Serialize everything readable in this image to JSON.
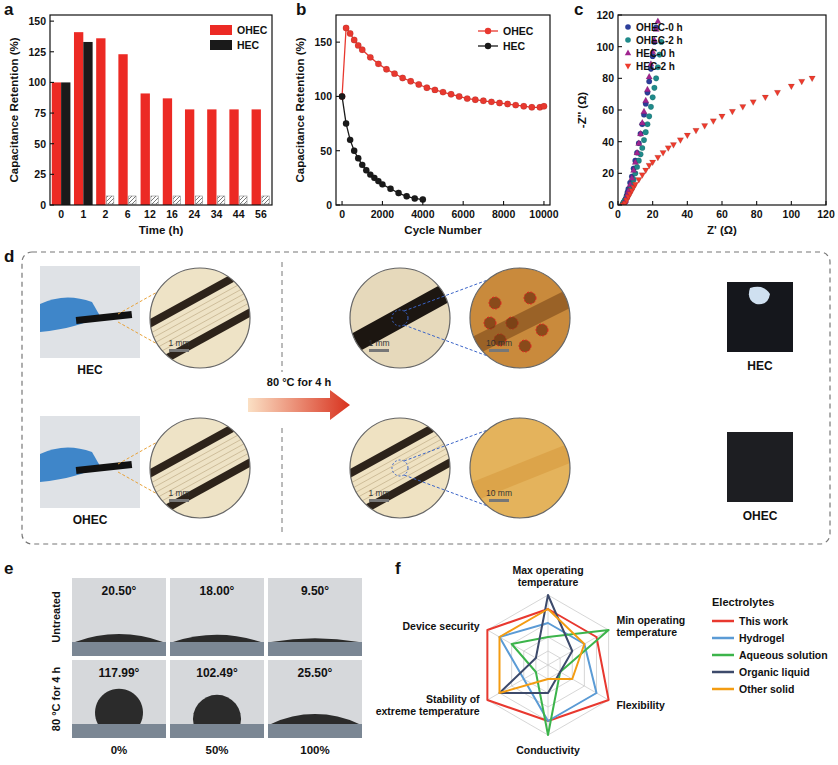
{
  "chart_data": [
    {
      "type": "bar",
      "title": "a",
      "x_label": "Time (h)",
      "y_label": "Capacitance Retention (%)",
      "categories": [
        "0",
        "1",
        "2",
        "6",
        "12",
        "16",
        "24",
        "34",
        "44",
        "56"
      ],
      "series": [
        {
          "name": "OHEC",
          "color": "#ec2a24",
          "values": [
            100,
            141,
            136,
            123,
            91,
            87,
            78,
            78,
            78,
            78
          ]
        },
        {
          "name": "HEC",
          "color": "#1a1a1a",
          "values": [
            100,
            133,
            null,
            null,
            null,
            null,
            null,
            null,
            null,
            null
          ]
        }
      ],
      "ylim": [
        0,
        155
      ],
      "yticks": [
        0,
        25,
        50,
        75,
        100,
        125,
        150
      ],
      "legend": "upper right"
    },
    {
      "type": "line",
      "title": "b",
      "x_label": "Cycle Number",
      "y_label": "Capacitance Retention (%)",
      "series": [
        {
          "name": "OHEC",
          "color": "#e8382f",
          "marker": "circle",
          "line_style": "solid",
          "x": [
            0,
            200,
            400,
            600,
            800,
            1000,
            1400,
            1800,
            2200,
            2600,
            3000,
            3400,
            3800,
            4200,
            4600,
            5000,
            5400,
            5800,
            6200,
            6600,
            7000,
            7400,
            7800,
            8200,
            8600,
            9000,
            9400,
            9800,
            10000
          ],
          "values": [
            100,
            163,
            158,
            152,
            147,
            143,
            136,
            130,
            125,
            121,
            117,
            114,
            111,
            108,
            106,
            104,
            102,
            100,
            98,
            97,
            96,
            95,
            94,
            93,
            92,
            91,
            90,
            90,
            91
          ]
        },
        {
          "name": "HEC",
          "color": "#1a1a1a",
          "marker": "circle",
          "line_style": "solid",
          "x": [
            0,
            200,
            400,
            600,
            800,
            1000,
            1200,
            1400,
            1600,
            1800,
            2000,
            2400,
            2800,
            3200,
            3600,
            4000
          ],
          "values": [
            100,
            75,
            60,
            50,
            43,
            37,
            32,
            28,
            25,
            22,
            19,
            15,
            11,
            8,
            6,
            5
          ]
        }
      ],
      "xlim": [
        -300,
        10300
      ],
      "xticks": [
        0,
        2000,
        4000,
        6000,
        8000,
        10000
      ],
      "ylim": [
        0,
        175
      ],
      "yticks": [
        0,
        50,
        100,
        150
      ],
      "legend": "upper right"
    },
    {
      "type": "scatter",
      "title": "c",
      "x_label": "Z' (Ω)",
      "y_label": "-Z'' (Ω)",
      "series": [
        {
          "name": "OHEC-0 h",
          "color": "#2c3e9a",
          "marker": "circle",
          "line_style": "none",
          "x": [
            2.5,
            3,
            3.5,
            4,
            4.5,
            5,
            5.5,
            6,
            7,
            8,
            9,
            10,
            11,
            12,
            13,
            14,
            15,
            16,
            17,
            18,
            19,
            20,
            21,
            22
          ],
          "values": [
            0,
            1,
            2,
            3,
            4,
            6,
            8,
            10,
            14,
            18,
            23,
            28,
            33,
            39,
            45,
            51,
            57,
            64,
            71,
            78,
            86,
            94,
            103,
            112
          ]
        },
        {
          "name": "OHEC-2 h",
          "color": "#1f8a8a",
          "marker": "circle",
          "line_style": "none",
          "x": [
            2.5,
            3,
            3.5,
            4,
            5,
            6,
            7,
            8,
            9,
            10,
            11,
            12,
            13,
            14,
            15,
            16,
            17,
            18,
            19,
            20,
            21,
            22,
            23,
            24,
            25
          ],
          "values": [
            0,
            1,
            2,
            3,
            5,
            7,
            10,
            13,
            16,
            20,
            24,
            28,
            32,
            36,
            41,
            46,
            51,
            56,
            62,
            68,
            74,
            80,
            87,
            95,
            103
          ]
        },
        {
          "name": "HEC-0 h",
          "color": "#a0248f",
          "marker": "triangle",
          "line_style": "none",
          "x": [
            3,
            3.5,
            4,
            4.5,
            5,
            5.5,
            6,
            7,
            8,
            9,
            10,
            11,
            12,
            13,
            14,
            15,
            16,
            17,
            18,
            19,
            20,
            21,
            22,
            23
          ],
          "values": [
            0,
            1,
            2,
            3,
            5,
            7,
            9,
            13,
            17,
            22,
            27,
            33,
            39,
            45,
            52,
            59,
            66,
            73,
            81,
            89,
            97,
            104,
            111,
            116
          ]
        },
        {
          "name": "HEC-2 h",
          "color": "#ee3b2d",
          "marker": "triangle-down",
          "line_style": "none",
          "x": [
            3,
            4,
            5,
            6,
            7,
            8,
            9,
            10,
            12,
            14,
            16,
            18,
            20,
            23,
            26,
            29,
            32,
            36,
            40,
            45,
            50,
            55,
            60,
            66,
            72,
            78,
            85,
            92,
            100,
            106,
            112
          ],
          "values": [
            0,
            1,
            3,
            5,
            7,
            9,
            11,
            13,
            16,
            19,
            22,
            25,
            27,
            30,
            33,
            36,
            38,
            41,
            44,
            47,
            50,
            53,
            56,
            59,
            62,
            65,
            68,
            71,
            75,
            78,
            80
          ]
        }
      ],
      "xlim": [
        0,
        120
      ],
      "xticks": [
        0,
        20,
        40,
        60,
        80,
        100,
        120
      ],
      "ylim": [
        0,
        120
      ],
      "yticks": [
        0,
        20,
        40,
        60,
        80,
        100,
        120
      ],
      "legend": "upper left"
    },
    {
      "type": "radar",
      "title": "f",
      "axes": [
        "Max operating temperature",
        "Min operating temperature",
        "Flexibility",
        "Conductivity",
        "Stability of extreme temperature",
        "Device security"
      ],
      "legend_title": "Electrolytes",
      "legend": "right",
      "tick_labels": false,
      "ylim": [
        0,
        5
      ],
      "yticks": [
        1,
        2,
        3,
        4,
        5
      ],
      "series": [
        {
          "name": "This work",
          "color": "#e8382f",
          "values": [
            4,
            4,
            5,
            4,
            5,
            5
          ]
        },
        {
          "name": "Hydrogel",
          "color": "#5b9bd5",
          "values": [
            3,
            3,
            4,
            4,
            2,
            4
          ]
        },
        {
          "name": "Aqueous solution",
          "color": "#3cb44b",
          "values": [
            2,
            5,
            1,
            5,
            1,
            3
          ]
        },
        {
          "name": "Organic liquid",
          "color": "#3d4a6b",
          "values": [
            5,
            2,
            1,
            2,
            4,
            1
          ]
        },
        {
          "name": "Other solid",
          "color": "#f39c12",
          "values": [
            4,
            3,
            2,
            1,
            4,
            4
          ]
        }
      ]
    }
  ],
  "photos": {
    "title": "d",
    "treatment": "80 °C for 4 h",
    "rows": [
      {
        "label": "HEC",
        "scale_before": "1 mm",
        "scale_after": "1 mm",
        "scale_zoom": "10 mm",
        "result_label": "HEC"
      },
      {
        "label": "OHEC",
        "scale_before": "1 mm",
        "scale_after": "1 mm",
        "scale_zoom": "10 mm",
        "result_label": "OHEC"
      }
    ]
  },
  "contact_angles": {
    "title": "e",
    "row_labels": [
      "Untreated",
      "80 °C for 4 h"
    ],
    "column_labels": [
      "0%",
      "50%",
      "100%"
    ],
    "angles": [
      [
        {
          "value": 20.5,
          "label": "20.50°"
        },
        {
          "value": 18,
          "label": "18.00°"
        },
        {
          "value": 9.5,
          "label": "9.50°"
        }
      ],
      [
        {
          "value": 117.99,
          "label": "117.99°"
        },
        {
          "value": 102.49,
          "label": "102.49°"
        },
        {
          "value": 25.5,
          "label": "25.50°"
        }
      ]
    ]
  }
}
